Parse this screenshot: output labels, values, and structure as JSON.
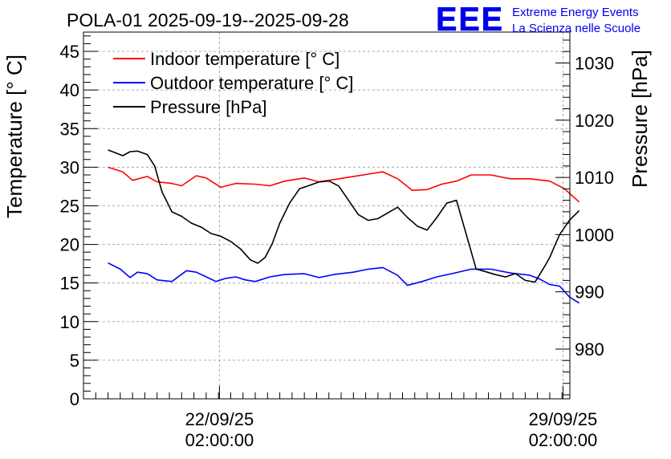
{
  "chart_data": {
    "type": "line",
    "title": "POLA-01 2025-09-19--2025-09-28",
    "logo": {
      "text": "EEE",
      "line1": "Extreme Energy Events",
      "line2": "La Scienza nelle Scuole",
      "color": "#0000ee"
    },
    "ylabel": "Temperature [° C]",
    "y2label": "Pressure [hPa]",
    "ylim": [
      0,
      47.5
    ],
    "y2lim": [
      971.3,
      1035.4
    ],
    "x_range_days": [
      0,
      9.91
    ],
    "x_ticks": [
      {
        "day": 2.77,
        "date": "22/09/25",
        "time": "02:00:00"
      },
      {
        "day": 9.77,
        "date": "29/09/25",
        "time": "02:00:00"
      }
    ],
    "y_ticks": [
      0,
      5,
      10,
      15,
      20,
      25,
      30,
      35,
      40,
      45
    ],
    "y2_ticks": [
      980,
      990,
      1000,
      1010,
      1020,
      1030
    ],
    "grid": true,
    "legend_position": "top-left",
    "series": [
      {
        "name": "Indoor temperature [° C]",
        "axis": "left",
        "color": "#ff0000",
        "x": [
          0,
          0.3,
          0.5,
          0.8,
          1.0,
          1.3,
          1.5,
          1.8,
          2.0,
          2.3,
          2.6,
          3.0,
          3.3,
          3.6,
          4.0,
          4.3,
          4.6,
          5.0,
          5.3,
          5.6,
          5.9,
          6.2,
          6.5,
          6.8,
          7.1,
          7.4,
          7.8,
          8.2,
          8.6,
          9.0,
          9.3,
          9.6
        ],
        "values": [
          30.0,
          29.4,
          28.3,
          28.8,
          28.1,
          27.9,
          27.6,
          28.9,
          28.6,
          27.4,
          27.9,
          27.8,
          27.6,
          28.2,
          28.6,
          28.1,
          28.4,
          28.8,
          29.1,
          29.4,
          28.5,
          27.0,
          27.1,
          27.8,
          28.2,
          29.0,
          29.0,
          28.5,
          28.5,
          28.2,
          27.2,
          25.5
        ]
      },
      {
        "name": "Outdoor temperature [° C]",
        "axis": "left",
        "color": "#0000ff",
        "x": [
          0,
          0.25,
          0.45,
          0.6,
          0.8,
          1.0,
          1.3,
          1.6,
          1.8,
          2.0,
          2.2,
          2.4,
          2.6,
          2.8,
          3.0,
          3.3,
          3.6,
          4.0,
          4.3,
          4.6,
          5.0,
          5.3,
          5.6,
          5.9,
          6.1,
          6.4,
          6.7,
          7.0,
          7.4,
          7.8,
          8.2,
          8.6,
          8.8,
          9.0,
          9.2,
          9.4,
          9.6
        ],
        "values": [
          17.6,
          16.8,
          15.7,
          16.4,
          16.2,
          15.4,
          15.2,
          16.6,
          16.4,
          15.8,
          15.2,
          15.6,
          15.8,
          15.4,
          15.2,
          15.8,
          16.1,
          16.2,
          15.7,
          16.1,
          16.4,
          16.8,
          17.0,
          16.0,
          14.7,
          15.2,
          15.8,
          16.2,
          16.8,
          16.8,
          16.3,
          16.0,
          15.5,
          14.8,
          14.6,
          13.2,
          12.4
        ]
      },
      {
        "name": "Pressure [hPa]",
        "axis": "right",
        "color": "#000000",
        "x": [
          0,
          0.15,
          0.3,
          0.45,
          0.6,
          0.8,
          0.95,
          1.1,
          1.3,
          1.5,
          1.7,
          1.9,
          2.1,
          2.3,
          2.5,
          2.7,
          2.9,
          3.05,
          3.2,
          3.35,
          3.5,
          3.7,
          3.9,
          4.1,
          4.3,
          4.5,
          4.7,
          4.9,
          5.1,
          5.3,
          5.5,
          5.7,
          5.9,
          6.1,
          6.3,
          6.5,
          6.7,
          6.9,
          7.1,
          7.3,
          7.5,
          7.7,
          7.9,
          8.1,
          8.3,
          8.5,
          8.7,
          8.9,
          9.0,
          9.1,
          9.2,
          9.4,
          9.6
        ],
        "values": [
          1014.8,
          1014.3,
          1013.8,
          1014.5,
          1014.6,
          1014.0,
          1012.0,
          1007.5,
          1004.0,
          1003.2,
          1002.0,
          1001.3,
          1000.2,
          999.7,
          998.8,
          997.5,
          995.6,
          995.0,
          996.0,
          998.5,
          1002.0,
          1005.5,
          1008.0,
          1008.6,
          1009.2,
          1009.4,
          1008.5,
          1006.0,
          1003.5,
          1002.5,
          1002.8,
          1003.8,
          1004.8,
          1003.0,
          1001.5,
          1000.8,
          1003.0,
          1005.5,
          1006.0,
          1000.0,
          994.0,
          993.5,
          993.0,
          992.6,
          993.2,
          992.0,
          991.7,
          994.5,
          996.0,
          998.0,
          1000.0,
          1002.5,
          1004.2
        ]
      }
    ]
  }
}
